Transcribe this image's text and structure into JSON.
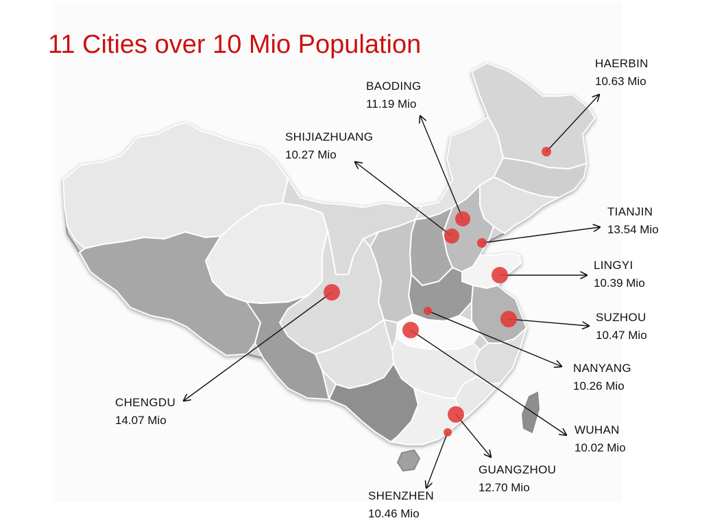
{
  "title": "11 Cities over 10 Mio Population",
  "colors": {
    "title": "#cc1111",
    "marker": "#e23a3a",
    "province_light": "#e6e6e6",
    "province_mid": "#c9c9c9",
    "province_dark": "#9d9d9d",
    "border": "#ffffff"
  },
  "cities": {
    "haerbin": {
      "name": "HAERBIN",
      "population": "10.63 Mio"
    },
    "baoding": {
      "name": "BAODING",
      "population": "11.19 Mio"
    },
    "shijiazhuang": {
      "name": "SHIJIAZHUANG",
      "population": "10.27 Mio"
    },
    "tianjin": {
      "name": "TIANJIN",
      "population": "13.54 Mio"
    },
    "lingyi": {
      "name": "LINGYI",
      "population": "10.39 Mio"
    },
    "suzhou": {
      "name": "SUZHOU",
      "population": "10.47 Mio"
    },
    "nanyang": {
      "name": "NANYANG",
      "population": "10.26 Mio"
    },
    "wuhan": {
      "name": "WUHAN",
      "population": "10.02 Mio"
    },
    "chengdu": {
      "name": "CHENGDU",
      "population": "14.07 Mio"
    },
    "guangzhou": {
      "name": "GUANGZHOU",
      "population": "12.70 Mio"
    },
    "shenzhen": {
      "name": "SHENZHEN",
      "population": "10.46 Mio"
    }
  }
}
